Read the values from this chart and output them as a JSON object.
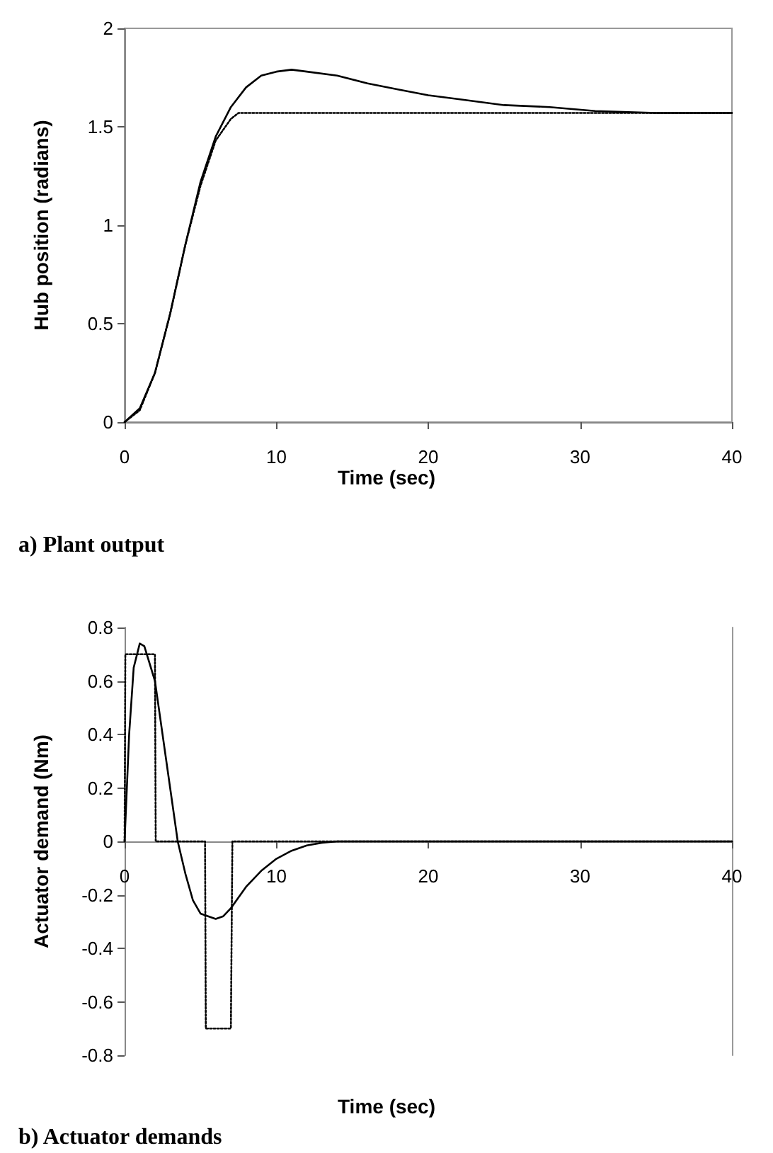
{
  "chart_data": [
    {
      "type": "line",
      "title": "a) Plant output",
      "xlabel": "Time (sec)",
      "ylabel": "Hub position (radians)",
      "xlim": [
        0,
        40
      ],
      "xticks": [
        0,
        10,
        20,
        30,
        40
      ],
      "ylim": [
        0,
        2
      ],
      "yticks": [
        0,
        0.5,
        1,
        1.5,
        2
      ],
      "grid": false,
      "marker": "none",
      "series": [
        {
          "color": "#000000",
          "line_style": "solid",
          "x": [
            0,
            1,
            2,
            3,
            4,
            5,
            6,
            7,
            8,
            9,
            10,
            11,
            12,
            14,
            16,
            18,
            20,
            22,
            25,
            28,
            31,
            35,
            40
          ],
          "values": [
            0,
            0.07,
            0.25,
            0.55,
            0.9,
            1.22,
            1.45,
            1.6,
            1.7,
            1.76,
            1.78,
            1.79,
            1.78,
            1.76,
            1.72,
            1.69,
            1.66,
            1.64,
            1.61,
            1.6,
            1.58,
            1.57,
            1.57
          ]
        },
        {
          "color": "#000000",
          "line_style": "dotted",
          "x": [
            0,
            1,
            2,
            3,
            4,
            5,
            6,
            7,
            7.5,
            40
          ],
          "values": [
            0,
            0.06,
            0.25,
            0.55,
            0.9,
            1.2,
            1.43,
            1.54,
            1.57,
            1.57
          ]
        }
      ]
    },
    {
      "type": "line",
      "title": "b) Actuator demands",
      "xlabel": "Time (sec)",
      "ylabel": "Actuator demand (Nm)",
      "xlim": [
        0,
        40
      ],
      "xticks": [
        0,
        10,
        20,
        30,
        40
      ],
      "ylim": [
        -0.8,
        0.8
      ],
      "yticks": [
        -0.8,
        -0.6,
        -0.4,
        -0.2,
        0,
        0.2,
        0.4,
        0.6,
        0.8
      ],
      "grid": false,
      "marker": "none",
      "series": [
        {
          "color": "#000000",
          "line_style": "solid",
          "x": [
            0,
            0.3,
            0.6,
            1,
            1.3,
            2,
            2.5,
            3,
            3.5,
            4,
            4.5,
            5,
            6,
            6.5,
            7,
            8,
            9,
            10,
            11,
            12,
            13,
            14,
            40
          ],
          "values": [
            0,
            0.4,
            0.65,
            0.74,
            0.73,
            0.6,
            0.4,
            0.2,
            0,
            -0.12,
            -0.22,
            -0.27,
            -0.29,
            -0.28,
            -0.25,
            -0.17,
            -0.11,
            -0.065,
            -0.035,
            -0.015,
            -0.005,
            0,
            0
          ]
        },
        {
          "color": "#000000",
          "line_style": "dotted",
          "x": [
            0,
            0.05,
            2,
            2.05,
            5.3,
            5.35,
            7,
            7.1,
            40
          ],
          "values": [
            0,
            0.7,
            0.7,
            0,
            0,
            -0.7,
            -0.7,
            0,
            0
          ]
        }
      ]
    }
  ]
}
